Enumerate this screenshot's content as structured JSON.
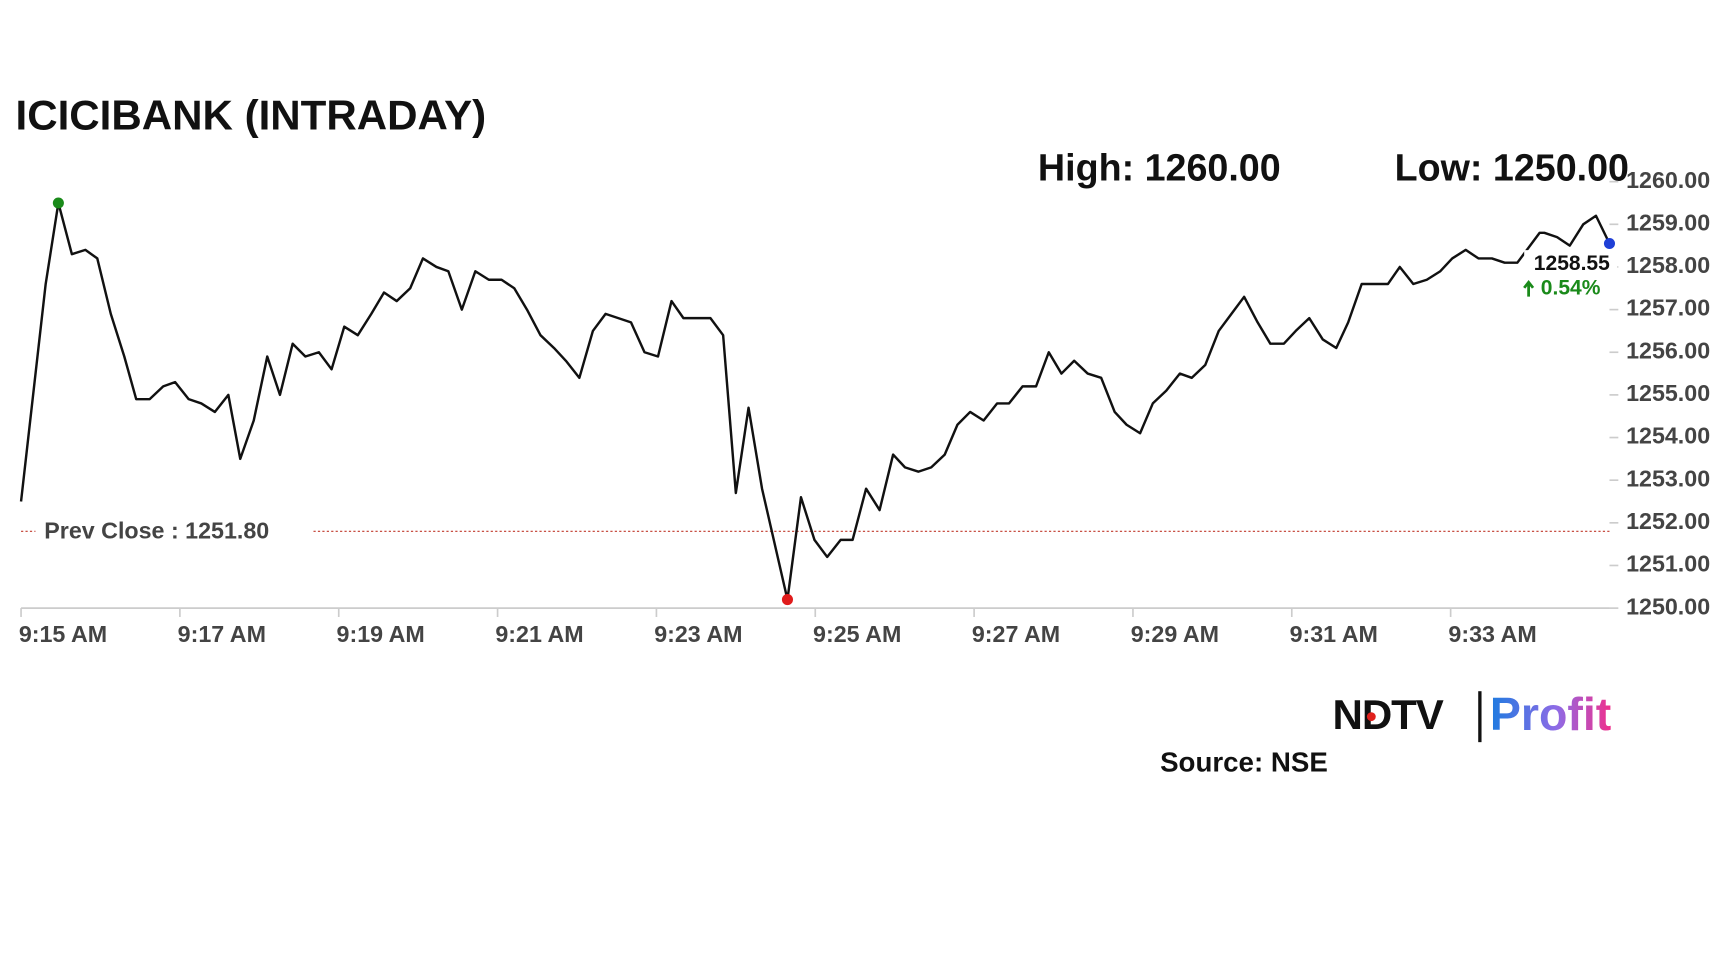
{
  "chart_data": {
    "type": "line",
    "title": "ICICIBANK (INTRADAY)",
    "high": {
      "value": 1260.0,
      "label": "High: 1260.00"
    },
    "low": {
      "value": 1250.0,
      "label": "Low: 1250.00"
    },
    "prev_close": {
      "value": 1251.8,
      "label": "Prev Close : 1251.80"
    },
    "change": {
      "value": 0.54,
      "label": "0.54%"
    },
    "color": "#111111",
    "xlim": [
      555,
      575
    ],
    "xticks": [
      {
        "value": 555,
        "label": "9:15 AM"
      },
      {
        "value": 557,
        "label": "9:17 AM"
      },
      {
        "value": 559,
        "label": "9:19 AM"
      },
      {
        "value": 561,
        "label": "9:21 AM"
      },
      {
        "value": 563,
        "label": "9:23 AM"
      },
      {
        "value": 565,
        "label": "9:25 AM"
      },
      {
        "value": 567,
        "label": "9:27 AM"
      },
      {
        "value": 569,
        "label": "9:29 AM"
      },
      {
        "value": 571,
        "label": "9:31 AM"
      },
      {
        "value": 573,
        "label": "9:33 AM"
      }
    ],
    "ylim": [
      1250,
      1260
    ],
    "yticks": [
      {
        "value": 1250,
        "label": "1250.00"
      },
      {
        "value": 1251,
        "label": "1251.00"
      },
      {
        "value": 1252,
        "label": "1252.00"
      },
      {
        "value": 1253,
        "label": "1253.00"
      },
      {
        "value": 1254,
        "label": "1254.00"
      },
      {
        "value": 1255,
        "label": "1255.00"
      },
      {
        "value": 1256,
        "label": "1256.00"
      },
      {
        "value": 1257,
        "label": "1257.00"
      },
      {
        "value": 1258,
        "label": "1258.00"
      },
      {
        "value": 1259,
        "label": "1259.00"
      },
      {
        "value": 1260,
        "label": "1260.00"
      }
    ],
    "x": [
      555,
      555.31,
      555.47,
      555.64,
      555.81,
      555.96,
      556.13,
      556.3,
      556.45,
      556.62,
      556.79,
      556.94,
      557.11,
      557.27,
      557.44,
      557.61,
      557.76,
      557.93,
      558.1,
      558.26,
      558.42,
      558.58,
      558.75,
      558.91,
      559.07,
      559.24,
      559.41,
      559.57,
      559.73,
      559.9,
      560.06,
      560.23,
      560.38,
      560.55,
      560.72,
      560.89,
      561.05,
      561.21,
      561.37,
      561.54,
      561.71,
      561.86,
      562.03,
      562.2,
      562.36,
      562.52,
      562.68,
      562.85,
      563.02,
      563.19,
      563.34,
      563.51,
      563.68,
      563.84,
      564.0,
      564.16,
      564.33,
      564.65,
      564.82,
      564.99,
      565.15,
      565.32,
      565.47,
      565.64,
      565.81,
      565.98,
      566.13,
      566.3,
      566.46,
      566.63,
      566.79,
      566.95,
      567.12,
      567.29,
      567.44,
      567.61,
      567.78,
      567.94,
      568.1,
      568.26,
      568.43,
      568.6,
      568.77,
      568.92,
      569.09,
      569.25,
      569.42,
      569.59,
      569.74,
      569.91,
      570.08,
      570.24,
      570.4,
      570.57,
      570.73,
      570.9,
      571.05,
      571.22,
      571.39,
      571.56,
      571.71,
      571.88,
      572.04,
      572.21,
      572.36,
      572.53,
      572.7,
      572.87,
      573.02,
      573.19,
      573.35,
      573.52,
      573.68,
      573.84,
      574.12,
      574.18,
      574.34,
      574.5,
      574.67,
      574.83,
      575
    ],
    "values": [
      1252.5,
      1257.6,
      1259.5,
      1258.3,
      1258.4,
      1258.2,
      1256.9,
      1255.9,
      1254.9,
      1254.9,
      1255.2,
      1255.3,
      1254.9,
      1254.8,
      1254.6,
      1255.0,
      1253.5,
      1254.4,
      1255.9,
      1255.0,
      1256.2,
      1255.9,
      1256.0,
      1255.6,
      1256.6,
      1256.4,
      1256.9,
      1257.4,
      1257.2,
      1257.5,
      1258.2,
      1258.0,
      1257.9,
      1257.0,
      1257.9,
      1257.7,
      1257.7,
      1257.5,
      1257.0,
      1256.4,
      1256.1,
      1255.8,
      1255.4,
      1256.5,
      1256.9,
      1256.8,
      1256.7,
      1256.0,
      1255.9,
      1257.2,
      1256.8,
      1256.8,
      1256.8,
      1256.4,
      1252.7,
      1254.7,
      1252.8,
      1250.2,
      1252.6,
      1251.6,
      1251.2,
      1251.6,
      1251.6,
      1252.8,
      1252.3,
      1253.6,
      1253.3,
      1253.2,
      1253.3,
      1253.6,
      1254.3,
      1254.6,
      1254.4,
      1254.8,
      1254.8,
      1255.2,
      1255.2,
      1256.0,
      1255.5,
      1255.8,
      1255.5,
      1255.4,
      1254.6,
      1254.3,
      1254.1,
      1254.8,
      1255.1,
      1255.5,
      1255.4,
      1255.7,
      1256.5,
      1256.9,
      1257.3,
      1256.7,
      1256.2,
      1256.2,
      1256.5,
      1256.8,
      1256.3,
      1256.1,
      1256.7,
      1257.6,
      1257.6,
      1257.6,
      1258.0,
      1257.6,
      1257.7,
      1257.9,
      1258.2,
      1258.4,
      1258.2,
      1258.2,
      1258.1,
      1258.1,
      1258.8,
      1258.8,
      1258.7,
      1258.5,
      1259.0,
      1259.2,
      1258.55
    ]
  },
  "footer": {
    "logo_left": "NDTV",
    "logo_right": "Profit",
    "source": "Source: NSE"
  }
}
